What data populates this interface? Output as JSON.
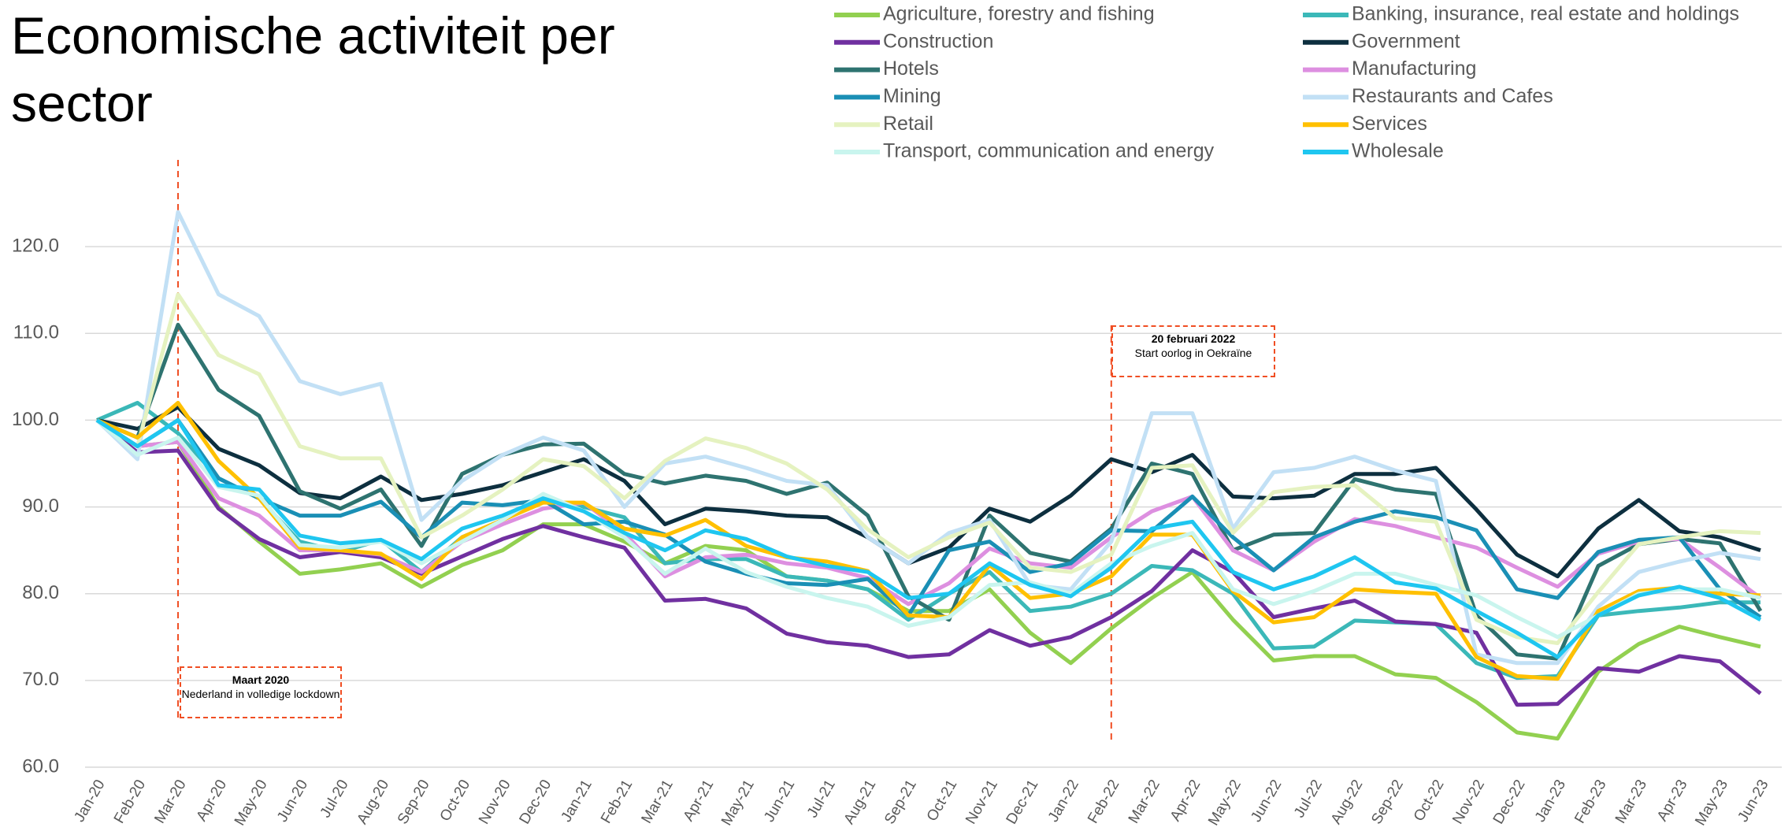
{
  "chart_data": {
    "type": "line",
    "title": "Economische activiteit per sector",
    "categories": [
      "Jan-20",
      "Feb-20",
      "Mar-20",
      "Apr-20",
      "May-20",
      "Jun-20",
      "Jul-20",
      "Aug-20",
      "Sep-20",
      "Oct-20",
      "Nov-20",
      "Dec-20",
      "Jan-21",
      "Feb-21",
      "Mar-21",
      "Apr-21",
      "May-21",
      "Jun-21",
      "Jul-21",
      "Aug-21",
      "Sep-21",
      "Oct-21",
      "Nov-21",
      "Dec-21",
      "Jan-22",
      "Feb-22",
      "Mar-22",
      "Apr-22",
      "May-22",
      "Jun-22",
      "Jul-22",
      "Aug-22",
      "Sep-22",
      "Oct-22",
      "Nov-22",
      "Dec-22",
      "Jan-23",
      "Feb-23",
      "Mar-23",
      "Apr-23",
      "May-23",
      "Jun-23"
    ],
    "ylim": [
      60,
      130
    ],
    "yticks": [
      {
        "value": 60,
        "label": "60.0"
      },
      {
        "value": 70,
        "label": "70.0"
      },
      {
        "value": 80,
        "label": "80.0"
      },
      {
        "value": 90,
        "label": "90.0"
      },
      {
        "value": 100,
        "label": "100.0"
      },
      {
        "value": 110,
        "label": "110.0"
      },
      {
        "value": 120,
        "label": "120.0"
      }
    ],
    "grid": true,
    "annotations": [
      {
        "label": "Maart 2020",
        "text": "Nederland in volledige lockdown"
      },
      {
        "label": "20 februari 2022",
        "text": "Start oorlog in Oekraïne"
      }
    ],
    "series": [
      {
        "name": "Agriculture, forestry and fishing",
        "color": "#92d050",
        "values": [
          100,
          97,
          97.5,
          90,
          86,
          82.3,
          82.8,
          83.5,
          80.8,
          83.3,
          85,
          88,
          88,
          86,
          83.5,
          85.5,
          85,
          82,
          81.5,
          80.5,
          78,
          78,
          80.5,
          75.5,
          72,
          76,
          79.5,
          82.5,
          77,
          72.3,
          72.8,
          72.8,
          70.7,
          70.3,
          67.5,
          64,
          63.3,
          71,
          74.2,
          76.2,
          75,
          73.9
        ]
      },
      {
        "name": "Banking, insurance, real estate and holdings",
        "color": "#3bb8b8",
        "values": [
          100,
          102,
          98.5,
          93.3,
          91,
          86,
          84.8,
          86.2,
          82.5,
          86.5,
          88.5,
          90.8,
          90,
          88.8,
          83.5,
          84,
          84,
          82,
          81.5,
          80.5,
          77,
          80,
          82.5,
          78,
          78.5,
          80,
          83.2,
          82.7,
          80,
          73.7,
          73.9,
          76.9,
          76.7,
          76.5,
          72,
          70.3,
          70.5,
          77.5,
          78,
          78.4,
          79,
          79
        ]
      },
      {
        "name": "Construction",
        "color": "#7030a0",
        "values": [
          100,
          96.3,
          96.5,
          89.8,
          86.3,
          84.2,
          84.8,
          84.2,
          82.3,
          84.3,
          86.3,
          87.8,
          86.5,
          85.3,
          79.2,
          79.4,
          78.3,
          75.4,
          74.4,
          74,
          72.7,
          73,
          75.8,
          74,
          75,
          77.3,
          80.3,
          85,
          82.5,
          77.3,
          78.3,
          79.2,
          76.8,
          76.5,
          75.5,
          67.2,
          67.3,
          71.4,
          71,
          72.8,
          72.2,
          68.5
        ]
      },
      {
        "name": "Government",
        "color": "#0d2f3f",
        "values": [
          100,
          99,
          101.5,
          96.7,
          94.8,
          91.6,
          91,
          93.5,
          90.8,
          91.5,
          92.5,
          94,
          95.5,
          93,
          88,
          89.8,
          89.5,
          89,
          88.8,
          86.5,
          83.5,
          85.3,
          89.8,
          88.3,
          91.3,
          95.5,
          94,
          96,
          91.2,
          91,
          91.3,
          93.8,
          93.8,
          94.5,
          89.7,
          84.5,
          82,
          87.5,
          90.8,
          87.2,
          86.5,
          85
        ]
      },
      {
        "name": "Hotels",
        "color": "#2e7370",
        "values": [
          100,
          98,
          111,
          103.5,
          100.5,
          91.8,
          89.8,
          92,
          85.5,
          93.8,
          96,
          97.2,
          97.3,
          93.8,
          92.7,
          93.6,
          93,
          91.5,
          92.8,
          89,
          79.7,
          77,
          89,
          84.7,
          83.7,
          87.5,
          95,
          93.8,
          85,
          86.8,
          87,
          93.2,
          92,
          91.5,
          77.5,
          73,
          72.5,
          83.2,
          85.7,
          86.3,
          85.8,
          78
        ]
      },
      {
        "name": "Manufacturing",
        "color": "#dd8fe0",
        "values": [
          100,
          97,
          97.5,
          91,
          89,
          85,
          85,
          84.5,
          82.5,
          86,
          88,
          89.8,
          90.5,
          87,
          82,
          84.2,
          84.5,
          83.5,
          83,
          81.8,
          78.8,
          81.2,
          85.2,
          83.5,
          83,
          86.5,
          89.5,
          91.2,
          85,
          82.7,
          86,
          88.6,
          87.8,
          86.5,
          85.3,
          83,
          80.8,
          84.6,
          86,
          86.3,
          83,
          79.5
        ]
      },
      {
        "name": "Mining",
        "color": "#1a8fb5",
        "values": [
          100,
          97,
          100,
          93.3,
          91,
          89,
          89,
          90.6,
          86.5,
          90.5,
          90.2,
          90.8,
          88,
          88.3,
          86.8,
          83.7,
          82.3,
          81.2,
          81,
          81.7,
          77.5,
          85,
          86,
          82.5,
          83.5,
          87.3,
          87.2,
          91.2,
          86.5,
          82.7,
          86.5,
          88.3,
          89.5,
          88.8,
          87.3,
          80.5,
          79.5,
          84.8,
          86.2,
          86.5,
          80.5,
          77.3
        ]
      },
      {
        "name": "Restaurants and Cafes",
        "color": "#c2e0f5",
        "values": [
          100,
          95.5,
          124,
          114.5,
          112,
          104.5,
          103,
          104.2,
          88.5,
          93,
          96,
          98,
          96.5,
          90,
          95,
          95.8,
          94.5,
          93,
          92.5,
          86.5,
          83.5,
          87,
          88.5,
          81,
          80.5,
          86,
          100.8,
          100.8,
          87.5,
          94,
          94.5,
          95.8,
          94.2,
          93,
          73,
          72,
          72,
          78.5,
          82.5,
          83.7,
          84.7,
          84
        ]
      },
      {
        "name": "Retail",
        "color": "#e5f2c0",
        "values": [
          100,
          97,
          114.5,
          107.5,
          105.3,
          97,
          95.6,
          95.6,
          86.5,
          89,
          92,
          95.5,
          94.7,
          91,
          95.3,
          97.9,
          96.8,
          95,
          92,
          87.4,
          84.2,
          86.5,
          88.2,
          83,
          82.5,
          84.5,
          94.5,
          94.8,
          87,
          91.7,
          92.3,
          92.5,
          88.7,
          88.3,
          77,
          75,
          74.3,
          80.2,
          85.7,
          86.5,
          87.2,
          87
        ]
      },
      {
        "name": "Services",
        "color": "#ffc000",
        "values": [
          100,
          98,
          102,
          95.3,
          91,
          85.3,
          85,
          84.6,
          81.7,
          86.5,
          88.5,
          90.5,
          90.5,
          87.5,
          86.7,
          88.5,
          85.5,
          84.2,
          83.7,
          82.6,
          77.5,
          77.3,
          83.3,
          79.5,
          80,
          82,
          86.8,
          86.8,
          80.3,
          76.7,
          77.3,
          80.5,
          80.2,
          80,
          72.7,
          70.5,
          70.2,
          78,
          80.3,
          80.7,
          80,
          79.8
        ]
      },
      {
        "name": "Transport, communication and energy",
        "color": "#c9f5ee",
        "values": [
          100,
          96,
          98,
          92.3,
          91.3,
          85.6,
          85.3,
          86,
          83.5,
          86,
          88.5,
          91.5,
          89.5,
          86.5,
          82.3,
          85.2,
          82.5,
          80.8,
          79.5,
          78.5,
          76.3,
          77.3,
          81,
          81.3,
          80,
          83.5,
          85.5,
          87,
          80.5,
          78.8,
          80.3,
          82.3,
          82.3,
          81,
          79.8,
          77.3,
          75,
          77.5,
          80,
          80.5,
          80.5,
          79.5
        ]
      },
      {
        "name": "Wholesale",
        "color": "#1fc6f0",
        "values": [
          100,
          97,
          100,
          92.5,
          92,
          86.7,
          85.8,
          86.2,
          84,
          87.5,
          89,
          91,
          89.5,
          87,
          85,
          87.3,
          86.3,
          84.3,
          83.2,
          82.5,
          79.5,
          80,
          83.5,
          81,
          79.7,
          83,
          87.5,
          88.3,
          82.5,
          80.5,
          82,
          84.2,
          81.3,
          80.6,
          78,
          75.5,
          72.7,
          77.5,
          79.8,
          80.8,
          79.5,
          77
        ]
      }
    ]
  }
}
